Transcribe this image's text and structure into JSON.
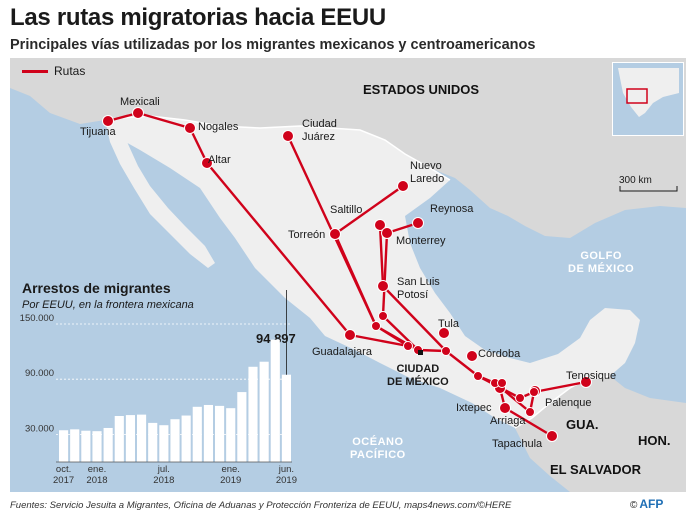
{
  "title": "Las rutas migratorias hacia EEUU",
  "subtitle": "Principales vías utilizadas por los migrantes mexicanos y centroamericanos",
  "legend": {
    "routes_label": "Rutas"
  },
  "colors": {
    "route": "#d0021b",
    "sea": "#b4cde3",
    "land": "#efefef",
    "neighbor": "#d8d8d8",
    "bar": "#ffffff"
  },
  "map": {
    "countries": {
      "usa": "ESTADOS UNIDOS",
      "guatemala": "GUA.",
      "honduras": "HON.",
      "el_salvador": "EL SALVADOR"
    },
    "seas": {
      "gulf": [
        "GOLFO",
        "DE MÉXICO"
      ],
      "pacific": [
        "OCÉANO",
        "PACÍFICO"
      ]
    },
    "scale": "300 km",
    "capital": [
      "CIUDAD",
      "DE MÉXICO"
    ],
    "cities": [
      {
        "id": "tijuana",
        "name": [
          "Tijuana"
        ]
      },
      {
        "id": "mexicali",
        "name": [
          "Mexicali"
        ]
      },
      {
        "id": "nogales",
        "name": [
          "Nogales"
        ]
      },
      {
        "id": "altar",
        "name": [
          "Altar"
        ]
      },
      {
        "id": "juarez",
        "name": [
          "Ciudad",
          "Juárez"
        ]
      },
      {
        "id": "nuevo_laredo",
        "name": [
          "Nuevo",
          "Laredo"
        ]
      },
      {
        "id": "reynosa",
        "name": [
          "Reynosa"
        ]
      },
      {
        "id": "saltillo",
        "name": [
          "Saltillo"
        ]
      },
      {
        "id": "monterrey",
        "name": [
          "Monterrey"
        ]
      },
      {
        "id": "torreon",
        "name": [
          "Torreón"
        ]
      },
      {
        "id": "slp",
        "name": [
          "San Luis",
          "Potosí"
        ]
      },
      {
        "id": "guadalajara",
        "name": [
          "Guadalajara"
        ]
      },
      {
        "id": "tula",
        "name": [
          "Tula"
        ]
      },
      {
        "id": "cordoba",
        "name": [
          "Córdoba"
        ]
      },
      {
        "id": "ixtepec",
        "name": [
          "Ixtepec"
        ]
      },
      {
        "id": "arriaga",
        "name": [
          "Arriaga"
        ]
      },
      {
        "id": "tapachula",
        "name": [
          "Tapachula"
        ]
      },
      {
        "id": "palenque",
        "name": [
          "Palenque"
        ]
      },
      {
        "id": "tenosique",
        "name": [
          "Tenosique"
        ]
      }
    ]
  },
  "chart_data": {
    "type": "bar",
    "title": "Arrestos de migrantes",
    "subtitle": "Por EEUU, en la frontera mexicana",
    "categories": [
      "oct. 2017",
      "nov. 2017",
      "dic. 2017",
      "ene. 2018",
      "feb. 2018",
      "mar. 2018",
      "abr. 2018",
      "may. 2018",
      "jun. 2018",
      "jul. 2018",
      "ago. 2018",
      "sep. 2018",
      "oct. 2018",
      "nov. 2018",
      "dic. 2018",
      "ene. 2019",
      "feb. 2019",
      "mar. 2019",
      "abr. 2019",
      "may. 2019",
      "jun. 2019"
    ],
    "values": [
      34500,
      35500,
      34000,
      33500,
      37000,
      50000,
      51000,
      51500,
      42500,
      40000,
      46500,
      50500,
      60000,
      62000,
      61000,
      58500,
      76000,
      103500,
      109000,
      133000,
      94897
    ],
    "ylim": [
      0,
      150000
    ],
    "yticks": [
      "30.000",
      "90.000",
      "150.000"
    ],
    "ytick_values": [
      30000,
      90000,
      150000
    ],
    "xticks": [
      {
        "line1": "oct.",
        "line2": "2017",
        "index": 0
      },
      {
        "line1": "ene.",
        "line2": "2018",
        "index": 3
      },
      {
        "line1": "jul.",
        "line2": "2018",
        "index": 9
      },
      {
        "line1": "ene.",
        "line2": "2019",
        "index": 15
      },
      {
        "line1": "jun.",
        "line2": "2019",
        "index": 20
      }
    ],
    "callout_value": "94.897"
  },
  "footer": "Fuentes: Servicio Jesuita a Migrantes, Oficina de Aduanas y Protección Fronteriza de EEUU, maps4news.com/©HERE",
  "credit": {
    "symbol": "©",
    "text": "AFP"
  }
}
